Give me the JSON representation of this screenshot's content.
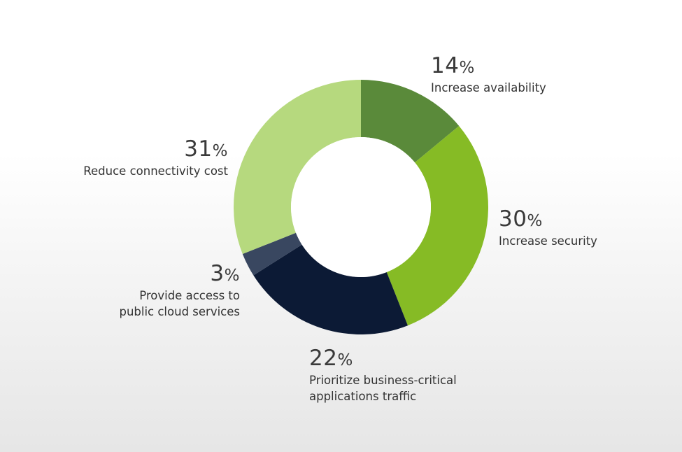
{
  "chart_data": {
    "type": "donut",
    "percent_sign": "%",
    "slices": [
      {
        "value": 14,
        "pct": "14",
        "label": [
          "Increase availability"
        ],
        "color": "#5a8a3a"
      },
      {
        "value": 30,
        "pct": "30",
        "label": [
          "Increase security"
        ],
        "color": "#86bb25"
      },
      {
        "value": 22,
        "pct": "22",
        "label": [
          "Prioritize business-critical",
          "applications traffic"
        ],
        "color": "#0c1a35"
      },
      {
        "value": 3,
        "pct": "3",
        "label": [
          "Provide access to",
          "public cloud services"
        ],
        "color": "#394760"
      },
      {
        "value": 31,
        "pct": "31",
        "label": [
          "Reduce connectivity cost"
        ],
        "color": "#b6d97e"
      }
    ]
  }
}
